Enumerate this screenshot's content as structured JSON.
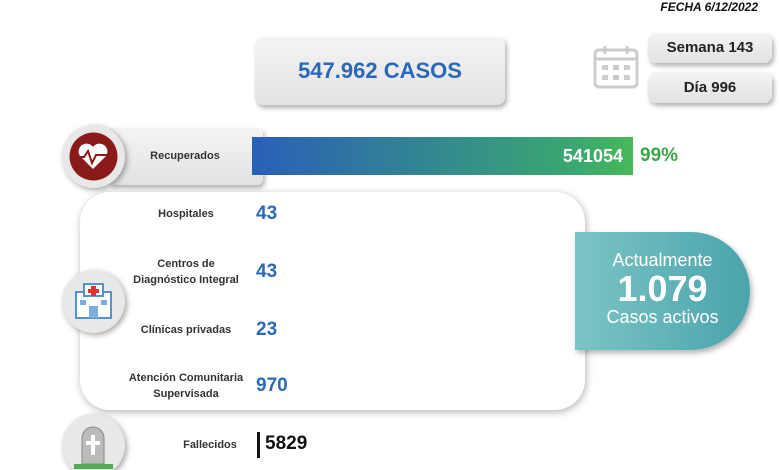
{
  "header": {
    "date": "FECHA 6/12/2022",
    "total": "547.962 CASOS",
    "week": "Semana 143",
    "day": "Día 996"
  },
  "recovered": {
    "label": "Recuperados",
    "value": "541054",
    "percent": "99%"
  },
  "facilities": [
    {
      "label": "Hospitales",
      "value": "43"
    },
    {
      "label": "Centros de Diagnóstico Integral",
      "value": "43"
    },
    {
      "label": "Clínicas privadas",
      "value": "23"
    },
    {
      "label": "Atención Comunitaria Supervisada",
      "value": "970"
    }
  ],
  "active": {
    "top": "Actualmente",
    "value": "1.079",
    "bottom": "Casos activos"
  },
  "deceased": {
    "label": "Fallecidos",
    "value": "5829"
  }
}
